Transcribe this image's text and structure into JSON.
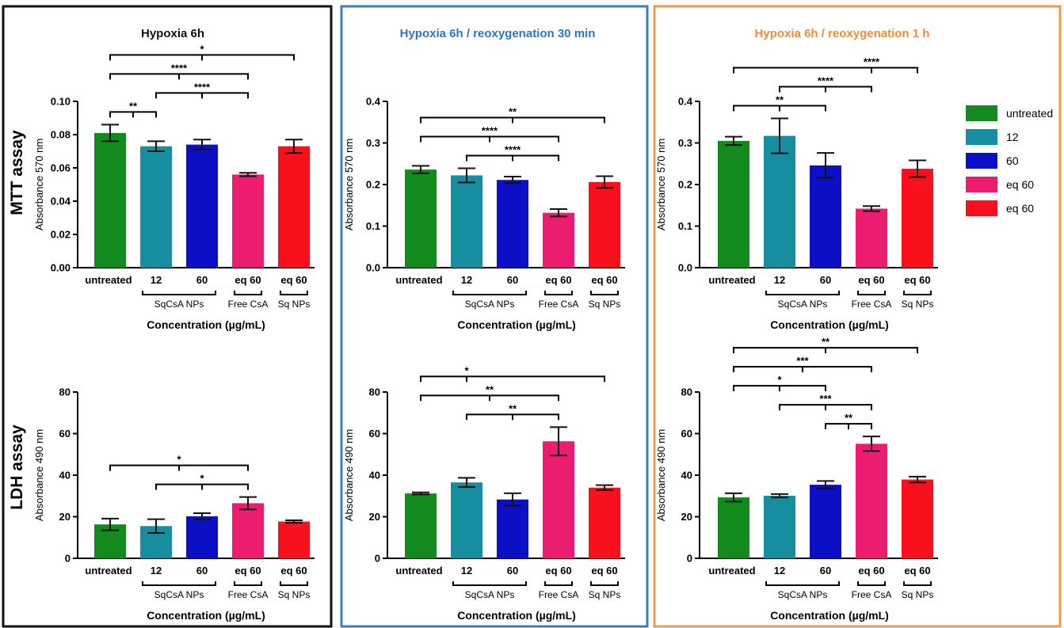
{
  "rows": [
    {
      "label": "MTT assay"
    },
    {
      "label": "LDH assay"
    }
  ],
  "columns": [
    {
      "title": "Hypoxia 6h",
      "border": "#111111",
      "title_color": "#111111"
    },
    {
      "title": "Hypoxia 6h / reoxygenation 30 min",
      "border": "#3a7cc3",
      "title_color": "#2f75c4"
    },
    {
      "title": "Hypoxia 6h / reoxygenation 1 h",
      "border": "#ee9a4d",
      "title_color": "#ef8b3a"
    }
  ],
  "legend": [
    {
      "label": "untreated",
      "color": "#138a1d"
    },
    {
      "label": "12",
      "color": "#168ea0"
    },
    {
      "label": "60",
      "color": "#0b10c7"
    },
    {
      "label": "eq 60",
      "color": "#ec1c71"
    },
    {
      "label": "eq 60",
      "color": "#f8101c"
    }
  ],
  "x_groups": [
    {
      "label": "SqCsA NPs",
      "from": 1,
      "to": 2
    },
    {
      "label": "Free CsA",
      "from": 3,
      "to": 3
    },
    {
      "label": "Sq NPs",
      "from": 4,
      "to": 4
    }
  ],
  "chart_data": [
    {
      "type": "bar",
      "row": 0,
      "col": 0,
      "categories": [
        "untreated",
        "12",
        "60",
        "eq 60",
        "eq 60"
      ],
      "values": [
        0.081,
        0.073,
        0.074,
        0.056,
        0.073
      ],
      "errors": [
        0.005,
        0.003,
        0.003,
        0.001,
        0.004
      ],
      "ylabel": "Absorbance 570 nm",
      "xlabel": "Concentration (µg/mL)",
      "ylim": [
        0,
        0.1
      ],
      "yticks": [
        "0.00",
        "0.02",
        "0.04",
        "0.06",
        "0.08",
        "0.10"
      ],
      "brackets": [
        {
          "from": 0,
          "to": 4,
          "label": "*"
        },
        {
          "from": 0,
          "to": 3,
          "label": "****"
        },
        {
          "from": 0,
          "to": 1,
          "label": "**"
        },
        {
          "from": 1,
          "to": 3,
          "label": "****"
        }
      ]
    },
    {
      "type": "bar",
      "row": 0,
      "col": 1,
      "categories": [
        "untreated",
        "12",
        "60",
        "eq 60",
        "eq 60"
      ],
      "values": [
        0.236,
        0.222,
        0.211,
        0.132,
        0.206
      ],
      "errors": [
        0.009,
        0.017,
        0.008,
        0.009,
        0.014
      ],
      "ylabel": "Absorbance 570 nm",
      "xlabel": "Concentration (µg/mL)",
      "ylim": [
        0,
        0.4
      ],
      "yticks": [
        "0.0",
        "0.1",
        "0.2",
        "0.3",
        "0.4"
      ],
      "brackets": [
        {
          "from": 0,
          "to": 3,
          "label": "****"
        },
        {
          "from": 0,
          "to": 4,
          "label": "**"
        },
        {
          "from": 1,
          "to": 3,
          "label": "****"
        }
      ]
    },
    {
      "type": "bar",
      "row": 0,
      "col": 2,
      "categories": [
        "untreated",
        "12",
        "60",
        "eq 60",
        "eq 60"
      ],
      "values": [
        0.305,
        0.317,
        0.246,
        0.142,
        0.238
      ],
      "errors": [
        0.01,
        0.042,
        0.03,
        0.006,
        0.02
      ],
      "ylabel": "Absorbance 570 nm",
      "xlabel": "Concentration (µg/mL)",
      "ylim": [
        0,
        0.4
      ],
      "yticks": [
        "0.0",
        "0.1",
        "0.2",
        "0.3",
        "0.4"
      ],
      "brackets": [
        {
          "from": 0,
          "to": 4,
          "label": "****",
          "mid": 3
        },
        {
          "from": 0,
          "to": 2,
          "label": "**"
        },
        {
          "from": 1,
          "to": 3,
          "label": "****"
        }
      ]
    },
    {
      "type": "bar",
      "row": 1,
      "col": 0,
      "categories": [
        "untreated",
        "12",
        "60",
        "eq 60",
        "eq 60"
      ],
      "values": [
        16.3,
        15.5,
        20.2,
        26.5,
        17.7
      ],
      "errors": [
        2.8,
        3.3,
        1.5,
        3.0,
        0.6
      ],
      "ylabel": "Absorbance 490 nm",
      "xlabel": "Concentration (µg/mL)",
      "ylim": [
        0,
        80
      ],
      "yticks": [
        "0",
        "20",
        "40",
        "60",
        "80"
      ],
      "brackets": [
        {
          "from": 0,
          "to": 3,
          "label": "*"
        },
        {
          "from": 1,
          "to": 3,
          "label": "*"
        }
      ]
    },
    {
      "type": "bar",
      "row": 1,
      "col": 1,
      "categories": [
        "untreated",
        "12",
        "60",
        "eq 60",
        "eq 60"
      ],
      "values": [
        31.2,
        36.5,
        28.3,
        56.3,
        34.0
      ],
      "errors": [
        0.5,
        2.2,
        3.0,
        6.8,
        1.2
      ],
      "ylabel": "Absorbance 490 nm",
      "xlabel": "Concentration (µg/mL)",
      "ylim": [
        0,
        80
      ],
      "yticks": [
        "0",
        "20",
        "40",
        "60",
        "80"
      ],
      "brackets": [
        {
          "from": 0,
          "to": 4,
          "label": "*",
          "mid": 1
        },
        {
          "from": 0,
          "to": 3,
          "label": "**"
        },
        {
          "from": 1,
          "to": 3,
          "label": "**"
        }
      ]
    },
    {
      "type": "bar",
      "row": 1,
      "col": 2,
      "categories": [
        "untreated",
        "12",
        "60",
        "eq 60",
        "eq 60"
      ],
      "values": [
        29.3,
        30.1,
        35.4,
        55.1,
        37.9
      ],
      "errors": [
        2.0,
        0.8,
        1.8,
        3.5,
        1.4
      ],
      "ylabel": "Absorbance 490 nm",
      "xlabel": "Concentration (µg/mL)",
      "ylim": [
        0,
        80
      ],
      "yticks": [
        "0",
        "20",
        "40",
        "60",
        "80"
      ],
      "brackets": [
        {
          "from": 0,
          "to": 3,
          "label": "***"
        },
        {
          "from": 0,
          "to": 4,
          "label": "**"
        },
        {
          "from": 1,
          "to": 3,
          "label": "***"
        },
        {
          "from": 2,
          "to": 3,
          "label": "**"
        },
        {
          "from": 0,
          "to": 2,
          "label": "*"
        }
      ]
    }
  ]
}
